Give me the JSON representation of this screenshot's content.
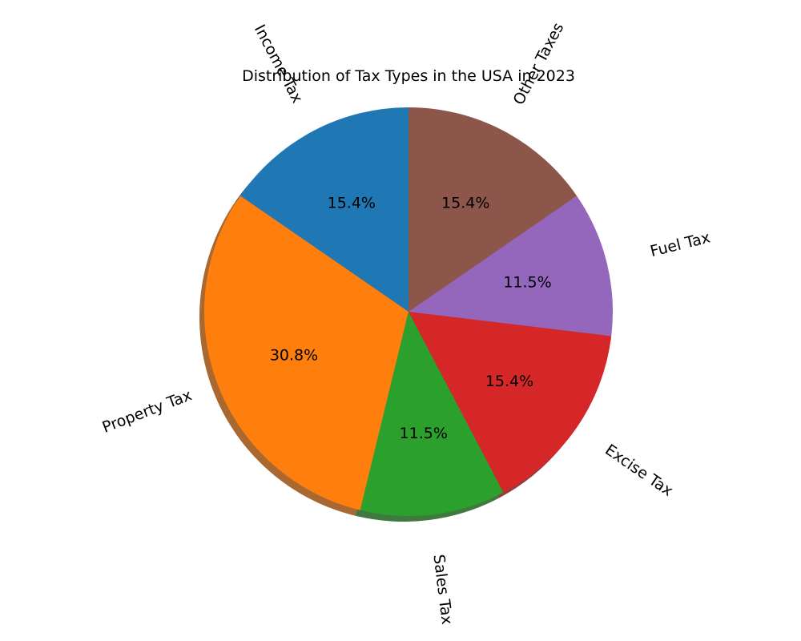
{
  "chart_data": {
    "type": "pie",
    "title": "Distribution of Tax Types in the USA in 2023",
    "start_angle_deg": 90,
    "direction": "counterclockwise",
    "shadow": true,
    "slices": [
      {
        "label": "Income Tax",
        "value": 15.4,
        "pct_label": "15.4%",
        "color": "#1f77b4"
      },
      {
        "label": "Property Tax",
        "value": 30.8,
        "pct_label": "30.8%",
        "color": "#ff7f0e"
      },
      {
        "label": "Sales Tax",
        "value": 11.5,
        "pct_label": "11.5%",
        "color": "#2ca02c"
      },
      {
        "label": "Excise Tax",
        "value": 15.4,
        "pct_label": "15.4%",
        "color": "#d62728"
      },
      {
        "label": "Fuel Tax",
        "value": 11.5,
        "pct_label": "11.5%",
        "color": "#9467bd"
      },
      {
        "label": "Other Taxes",
        "value": 15.4,
        "pct_label": "15.4%",
        "color": "#8c564b"
      }
    ]
  }
}
